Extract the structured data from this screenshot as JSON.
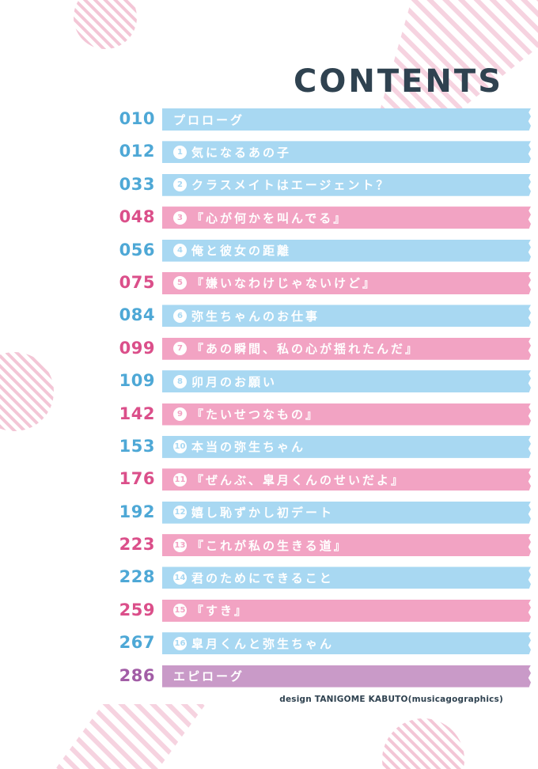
{
  "heading": "CONTENTS",
  "credit": "design TANIGOME KABUTO(musicagographics)",
  "colors": {
    "blue_bar": "#a8d8f2",
    "pink_bar": "#f2a3c3",
    "purple_bar": "#c99ac8",
    "blue_num": "#4ea8d6",
    "pink_num": "#db4f8a",
    "purple_num": "#a25da6",
    "heading": "#2f4250"
  },
  "entries": [
    {
      "page": "010",
      "num": "",
      "title": "プロローグ",
      "color": "blue"
    },
    {
      "page": "012",
      "num": "1",
      "title": "気になるあの子",
      "color": "blue"
    },
    {
      "page": "033",
      "num": "2",
      "title": "クラスメイトはエージェント？",
      "color": "blue"
    },
    {
      "page": "048",
      "num": "3",
      "title": "『心が何かを叫んでる』",
      "color": "pink"
    },
    {
      "page": "056",
      "num": "4",
      "title": "俺と彼女の距離",
      "color": "blue"
    },
    {
      "page": "075",
      "num": "5",
      "title": "『嫌いなわけじゃないけど』",
      "color": "pink"
    },
    {
      "page": "084",
      "num": "6",
      "title": "弥生ちゃんのお仕事",
      "color": "blue"
    },
    {
      "page": "099",
      "num": "7",
      "title": "『あの瞬間、私の心が揺れたんだ』",
      "color": "pink"
    },
    {
      "page": "109",
      "num": "8",
      "title": "卯月のお願い",
      "color": "blue"
    },
    {
      "page": "142",
      "num": "9",
      "title": "『たいせつなもの』",
      "color": "pink"
    },
    {
      "page": "153",
      "num": "10",
      "title": "本当の弥生ちゃん",
      "color": "blue"
    },
    {
      "page": "176",
      "num": "11",
      "title": "『ぜんぶ、皐月くんのせいだよ』",
      "color": "pink"
    },
    {
      "page": "192",
      "num": "12",
      "title": "嬉し恥ずかし初デート",
      "color": "blue"
    },
    {
      "page": "223",
      "num": "13",
      "title": "『これが私の生きる道』",
      "color": "pink"
    },
    {
      "page": "228",
      "num": "14",
      "title": "君のためにできること",
      "color": "blue"
    },
    {
      "page": "259",
      "num": "15",
      "title": "『すき』",
      "color": "pink"
    },
    {
      "page": "267",
      "num": "16",
      "title": "皐月くんと弥生ちゃん",
      "color": "blue"
    },
    {
      "page": "286",
      "num": "",
      "title": "エピローグ",
      "color": "purple"
    }
  ]
}
